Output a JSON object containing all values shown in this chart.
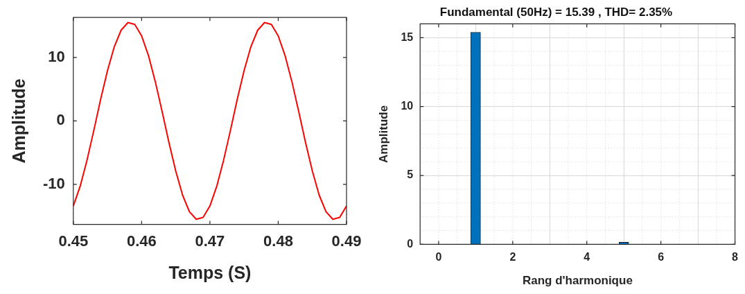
{
  "chart_data": [
    {
      "type": "line",
      "xlabel": "Temps (S)",
      "ylabel": "Amplitude",
      "xlim": [
        0.45,
        0.49
      ],
      "xticks": [
        0.45,
        0.46,
        0.47,
        0.48,
        0.49
      ],
      "ylim": [
        -16.3,
        16.3
      ],
      "yticks": [
        -10,
        0,
        10
      ],
      "grid": false,
      "legend": false,
      "marker": "none",
      "x": [
        0.45,
        0.451,
        0.452,
        0.453,
        0.454,
        0.455,
        0.456,
        0.457,
        0.458,
        0.459,
        0.46,
        0.461,
        0.462,
        0.463,
        0.464,
        0.465,
        0.466,
        0.467,
        0.468,
        0.469,
        0.47,
        0.471,
        0.472,
        0.473,
        0.474,
        0.475,
        0.476,
        0.477,
        0.478,
        0.479,
        0.48,
        0.481,
        0.482,
        0.483,
        0.484,
        0.485,
        0.486,
        0.487,
        0.488,
        0.489,
        0.49
      ],
      "series": [
        {
          "color": "#ff0000",
          "values": [
            -13.4,
            -10.3,
            -6.2,
            -1.5,
            3.4,
            7.9,
            11.7,
            14.3,
            15.5,
            15.2,
            13.4,
            10.3,
            6.2,
            1.5,
            -3.4,
            -7.9,
            -11.7,
            -14.3,
            -15.5,
            -15.2,
            -13.4,
            -10.3,
            -6.2,
            -1.5,
            3.4,
            7.9,
            11.7,
            14.3,
            15.5,
            15.2,
            13.4,
            10.3,
            6.2,
            1.5,
            -3.4,
            -7.9,
            -11.7,
            -14.3,
            -15.5,
            -15.2,
            -13.4
          ]
        }
      ]
    },
    {
      "type": "bar",
      "title": "Fundamental (50Hz) = 15.39 , THD= 2.35%",
      "xlabel": "Rang d'harmonique",
      "ylabel": "Amplitude",
      "xlim": [
        -0.5,
        8
      ],
      "xticks": [
        0,
        2,
        4,
        6,
        8
      ],
      "ylim": [
        0,
        16
      ],
      "yticks": [
        0,
        5,
        10,
        15
      ],
      "grid": true,
      "legend": false,
      "x": [
        1,
        5
      ],
      "values": [
        15.39,
        0.15
      ],
      "color": "#0072bd"
    }
  ]
}
